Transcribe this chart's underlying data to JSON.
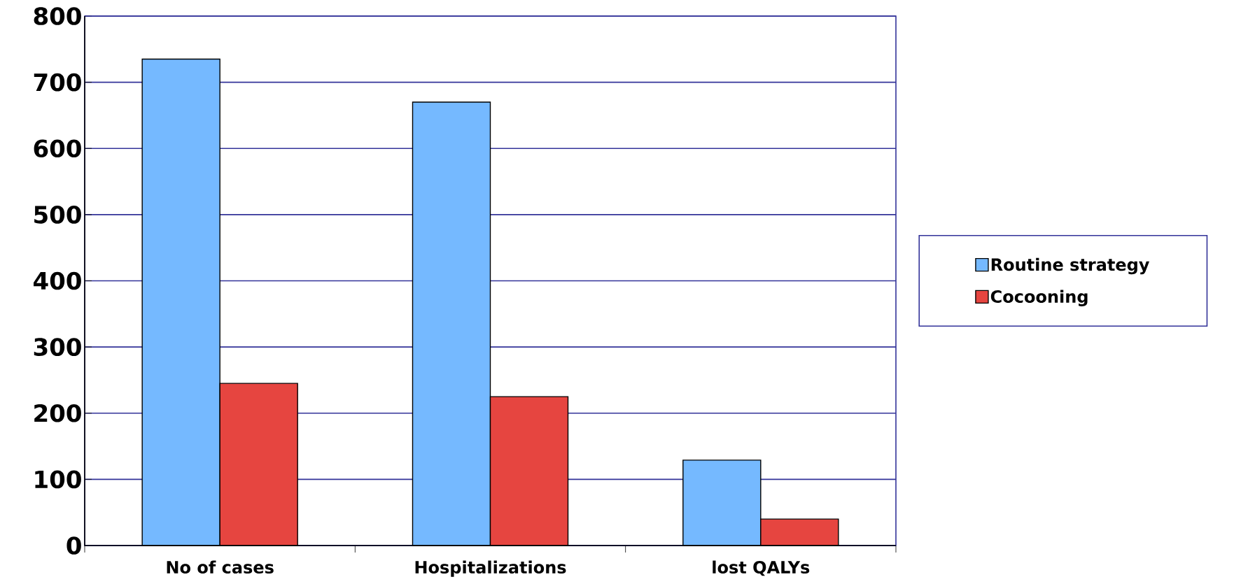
{
  "chart_data": {
    "type": "bar",
    "categories": [
      "No of cases",
      "Hospitalizations",
      "lost QALYs"
    ],
    "series": [
      {
        "name": "Routine strategy",
        "color": "#75b9ff",
        "values": [
          735,
          670,
          129
        ]
      },
      {
        "name": "Cocooning",
        "color": "#e64540",
        "values": [
          245,
          225,
          40
        ]
      }
    ],
    "ylim": [
      0,
      800
    ],
    "yticks": [
      0,
      100,
      200,
      300,
      400,
      500,
      600,
      700,
      800
    ],
    "grid": "y",
    "legend": "right"
  }
}
